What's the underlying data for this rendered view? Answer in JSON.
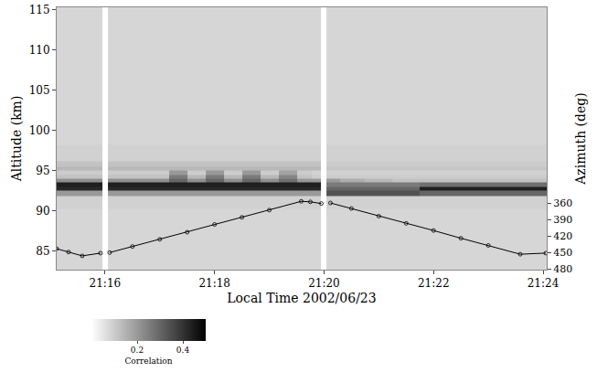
{
  "chart_data": {
    "type": "heatmap",
    "x_label": "Local Time 2002/06/23",
    "y_label": "Altitude (km)",
    "y2_label": "Azimuth (deg)",
    "xlim": [
      "2002-06-23 21:15:07",
      "2002-06-23 21:24:04"
    ],
    "xticks": [
      {
        "value": "2002-06-23 21:16:00",
        "label": "21:16"
      },
      {
        "value": "2002-06-23 21:18:00",
        "label": "21:18"
      },
      {
        "value": "2002-06-23 21:20:00",
        "label": "21:20"
      },
      {
        "value": "2002-06-23 21:22:00",
        "label": "21:22"
      },
      {
        "value": "2002-06-23 21:24:00",
        "label": "21:24"
      }
    ],
    "ylim": [
      82.7,
      115.3
    ],
    "yticks": [
      85,
      90,
      95,
      100,
      105,
      110,
      115
    ],
    "y2lim": [
      481,
      5
    ],
    "y2ticks": [
      360,
      390,
      420,
      450,
      480
    ],
    "grid": false,
    "heatmap": {
      "x": [
        "2002-06-23 21:15:10",
        "2002-06-23 21:15:30",
        "2002-06-23 21:15:54",
        "2002-06-23 21:16:00",
        "2002-06-23 21:16:06",
        "2002-06-23 21:16:30",
        "2002-06-23 21:17:00",
        "2002-06-23 21:17:20",
        "2002-06-23 21:17:40",
        "2002-06-23 21:18:00",
        "2002-06-23 21:18:20",
        "2002-06-23 21:18:40",
        "2002-06-23 21:19:00",
        "2002-06-23 21:19:20",
        "2002-06-23 21:19:40",
        "2002-06-23 21:19:54",
        "2002-06-23 21:20:00",
        "2002-06-23 21:20:06",
        "2002-06-23 21:20:30",
        "2002-06-23 21:21:00",
        "2002-06-23 21:21:30",
        "2002-06-23 21:22:00",
        "2002-06-23 21:22:30",
        "2002-06-23 21:23:00",
        "2002-06-23 21:23:30",
        "2002-06-23 21:23:55"
      ],
      "y": [
        84,
        89,
        91.5,
        92.25,
        92.75,
        93.25,
        93.75,
        94.25,
        94.75,
        95.25,
        95.75,
        96.5,
        100,
        106,
        113
      ],
      "z": [
        [
          0.08,
          0.08,
          0.08,
          null,
          0.08,
          0.08,
          0.08,
          0.08,
          0.08,
          0.08,
          0.08,
          0.08,
          0.08,
          0.08,
          0.08,
          0.08,
          null,
          0.08,
          0.08,
          0.08,
          0.08,
          0.08,
          0.08,
          0.08,
          0.08,
          0.08
        ],
        [
          0.08,
          0.08,
          0.08,
          null,
          0.08,
          0.08,
          0.08,
          0.08,
          0.08,
          0.08,
          0.08,
          0.08,
          0.08,
          0.08,
          0.08,
          0.08,
          null,
          0.08,
          0.08,
          0.08,
          0.08,
          0.08,
          0.08,
          0.08,
          0.08,
          0.08
        ],
        [
          0.09,
          0.09,
          0.09,
          null,
          0.09,
          0.09,
          0.09,
          0.09,
          0.09,
          0.09,
          0.09,
          0.09,
          0.09,
          0.09,
          0.09,
          0.09,
          null,
          0.09,
          0.09,
          0.09,
          0.09,
          0.09,
          0.09,
          0.09,
          0.09,
          0.09
        ],
        [
          0.2,
          0.2,
          0.2,
          null,
          0.2,
          0.2,
          0.2,
          0.2,
          0.2,
          0.2,
          0.2,
          0.2,
          0.2,
          0.2,
          0.2,
          0.2,
          null,
          0.34,
          0.34,
          0.34,
          0.34,
          0.3,
          0.3,
          0.3,
          0.3,
          0.3
        ],
        [
          0.42,
          0.42,
          0.42,
          null,
          0.42,
          0.42,
          0.42,
          0.42,
          0.42,
          0.42,
          0.42,
          0.42,
          0.42,
          0.42,
          0.42,
          0.42,
          null,
          0.3,
          0.3,
          0.3,
          0.3,
          0.44,
          0.44,
          0.44,
          0.44,
          0.44
        ],
        [
          0.44,
          0.44,
          0.44,
          null,
          0.44,
          0.44,
          0.44,
          0.44,
          0.44,
          0.44,
          0.44,
          0.44,
          0.44,
          0.44,
          0.44,
          0.44,
          null,
          0.26,
          0.26,
          0.26,
          0.26,
          0.28,
          0.28,
          0.28,
          0.28,
          0.28
        ],
        [
          0.22,
          0.22,
          0.22,
          null,
          0.22,
          0.22,
          0.22,
          0.3,
          0.22,
          0.3,
          0.22,
          0.3,
          0.22,
          0.28,
          0.2,
          0.2,
          null,
          0.2,
          0.16,
          0.14,
          0.12,
          0.12,
          0.12,
          0.12,
          0.12,
          0.12
        ],
        [
          0.12,
          0.12,
          0.12,
          null,
          0.12,
          0.12,
          0.12,
          0.26,
          0.14,
          0.26,
          0.14,
          0.26,
          0.14,
          0.24,
          0.12,
          0.1,
          null,
          0.1,
          0.1,
          0.1,
          0.1,
          0.1,
          0.1,
          0.1,
          0.1,
          0.1
        ],
        [
          0.1,
          0.1,
          0.1,
          null,
          0.1,
          0.1,
          0.1,
          0.2,
          0.1,
          0.2,
          0.1,
          0.2,
          0.1,
          0.18,
          0.1,
          0.09,
          null,
          0.09,
          0.09,
          0.09,
          0.09,
          0.09,
          0.09,
          0.09,
          0.09,
          0.09
        ],
        [
          0.14,
          0.14,
          0.14,
          null,
          0.14,
          0.14,
          0.14,
          0.14,
          0.14,
          0.14,
          0.14,
          0.14,
          0.14,
          0.14,
          0.14,
          0.14,
          null,
          0.11,
          0.11,
          0.11,
          0.11,
          0.11,
          0.11,
          0.11,
          0.11,
          0.11
        ],
        [
          0.12,
          0.12,
          0.12,
          null,
          0.12,
          0.12,
          0.12,
          0.12,
          0.12,
          0.12,
          0.12,
          0.12,
          0.12,
          0.12,
          0.12,
          0.12,
          null,
          0.1,
          0.1,
          0.1,
          0.1,
          0.1,
          0.1,
          0.1,
          0.1,
          0.1
        ],
        [
          0.09,
          0.09,
          0.09,
          null,
          0.09,
          0.09,
          0.09,
          0.09,
          0.09,
          0.09,
          0.09,
          0.09,
          0.09,
          0.09,
          0.09,
          0.09,
          null,
          0.09,
          0.09,
          0.09,
          0.09,
          0.09,
          0.09,
          0.09,
          0.09,
          0.09
        ],
        [
          0.08,
          0.08,
          0.08,
          null,
          0.08,
          0.08,
          0.08,
          0.08,
          0.08,
          0.08,
          0.08,
          0.08,
          0.08,
          0.08,
          0.08,
          0.08,
          null,
          0.08,
          0.08,
          0.08,
          0.08,
          0.08,
          0.08,
          0.08,
          0.08,
          0.08
        ],
        [
          0.08,
          0.08,
          0.08,
          null,
          0.08,
          0.08,
          0.08,
          0.08,
          0.08,
          0.08,
          0.08,
          0.08,
          0.08,
          0.08,
          0.08,
          0.08,
          null,
          0.08,
          0.08,
          0.08,
          0.08,
          0.08,
          0.08,
          0.08,
          0.08,
          0.08
        ],
        [
          0.08,
          0.08,
          0.08,
          null,
          0.08,
          0.08,
          0.08,
          0.08,
          0.08,
          0.08,
          0.08,
          0.08,
          0.08,
          0.08,
          0.08,
          0.08,
          null,
          0.08,
          0.08,
          0.08,
          0.08,
          0.08,
          0.08,
          0.08,
          0.08,
          0.08
        ]
      ],
      "colorbar_title": "Correlation",
      "colorbar_range": [
        0,
        0.5
      ],
      "colorbar_ticks": [
        0.2,
        0.4
      ]
    },
    "series": [
      {
        "axis": "y2",
        "type": "scatter",
        "color": "#000000",
        "marker": "circle-open",
        "line_style": "solid",
        "x": [
          "2002-06-23 21:15:07",
          "2002-06-23 21:15:20",
          "2002-06-23 21:15:35",
          "2002-06-23 21:15:55",
          "2002-06-23 21:16:00",
          "2002-06-23 21:16:05",
          "2002-06-23 21:16:30",
          "2002-06-23 21:17:00",
          "2002-06-23 21:17:30",
          "2002-06-23 21:18:00",
          "2002-06-23 21:18:30",
          "2002-06-23 21:19:00",
          "2002-06-23 21:19:35",
          "2002-06-23 21:19:45",
          "2002-06-23 21:19:57",
          "2002-06-23 21:20:00",
          "2002-06-23 21:20:07",
          "2002-06-23 21:20:30",
          "2002-06-23 21:21:00",
          "2002-06-23 21:21:30",
          "2002-06-23 21:22:00",
          "2002-06-23 21:22:30",
          "2002-06-23 21:23:00",
          "2002-06-23 21:23:35",
          "2002-06-23 21:24:03"
        ],
        "values": [
          443,
          449,
          456,
          451,
          null,
          450,
          439,
          426,
          413,
          399,
          386,
          373,
          357,
          358,
          361,
          null,
          360,
          370,
          384,
          397,
          410,
          424,
          437,
          453,
          451
        ]
      }
    ]
  }
}
